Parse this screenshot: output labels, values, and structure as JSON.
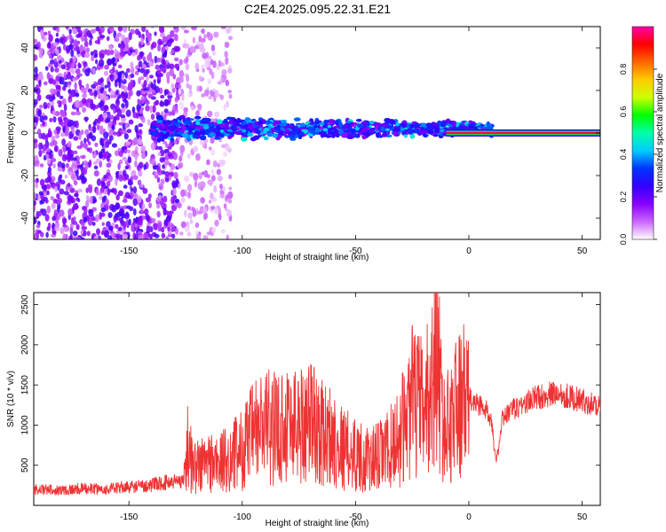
{
  "title": "C2E4.2025.095.22.31.E21",
  "chart_data": [
    {
      "type": "heatmap",
      "xlabel": "Height of straight line (km)",
      "ylabel": "Frequency (Hz)",
      "xlim": [
        -192,
        58
      ],
      "ylim": [
        -50,
        50
      ],
      "xticks": [
        -150,
        -100,
        -50,
        0,
        50
      ],
      "yticks": [
        -40,
        -20,
        0,
        20,
        40
      ],
      "colorbar": {
        "label": "Normalized spectral amplitude",
        "range": [
          0,
          1
        ],
        "ticks": [
          0.0,
          0.2,
          0.4,
          0.6,
          0.8
        ],
        "colors": [
          "#ffffff",
          "#cc66ff",
          "#8800ff",
          "#3300ff",
          "#0033ff",
          "#00ccff",
          "#00ffaa",
          "#00ff00",
          "#ccff00",
          "#ffcc00",
          "#ff6600",
          "#ff0000",
          "#ff00aa"
        ]
      },
      "regions": [
        {
          "name": "noise",
          "x": [
            -192,
            -128
          ],
          "freq_range": [
            -50,
            50
          ],
          "amplitude": [
            0.05,
            0.25
          ]
        },
        {
          "name": "sparse",
          "x": [
            -128,
            -105
          ],
          "freq_range": [
            -50,
            50
          ],
          "amplitude": [
            0.02,
            0.1
          ]
        },
        {
          "name": "signal",
          "x": [
            -140,
            10
          ],
          "center_freq": 2,
          "half_width": 6,
          "amplitude": [
            0.15,
            0.5
          ]
        },
        {
          "name": "carrier",
          "x": [
            -10,
            58
          ],
          "center_freq": 0,
          "amplitude": 1.0
        }
      ]
    },
    {
      "type": "line",
      "xlabel": "Height of straight line (km)",
      "ylabel": "SNR (10 * v/v)",
      "xlim": [
        -192,
        58
      ],
      "ylim": [
        0,
        2650
      ],
      "xticks": [
        -150,
        -100,
        -50,
        0,
        50
      ],
      "yticks": [
        500,
        1000,
        1500,
        2000,
        2500
      ],
      "color": "#ee3333",
      "series": [
        {
          "x": [
            -192,
            -180,
            -170,
            -160,
            -150,
            -140,
            -135,
            -130,
            -126,
            -124,
            -122,
            -120,
            -115,
            -110,
            -105,
            -100,
            -95,
            -90,
            -85,
            -80,
            -75,
            -70,
            -65,
            -60,
            -55,
            -50,
            -45,
            -40,
            -35,
            -30,
            -25,
            -20,
            -16,
            -14,
            -12,
            -10,
            -8,
            -5,
            -2,
            0,
            5,
            10,
            12,
            15,
            20,
            30,
            40,
            50,
            58
          ],
          "y": [
            200,
            190,
            210,
            200,
            230,
            250,
            280,
            300,
            320,
            750,
            500,
            480,
            550,
            520,
            600,
            700,
            900,
            1000,
            950,
            1050,
            1000,
            1100,
            900,
            850,
            700,
            650,
            550,
            600,
            700,
            900,
            1300,
            1200,
            1500,
            2100,
            1100,
            900,
            1100,
            1250,
            1300,
            1320,
            1250,
            1100,
            500,
            1100,
            1200,
            1350,
            1400,
            1300,
            1250
          ]
        }
      ]
    }
  ]
}
